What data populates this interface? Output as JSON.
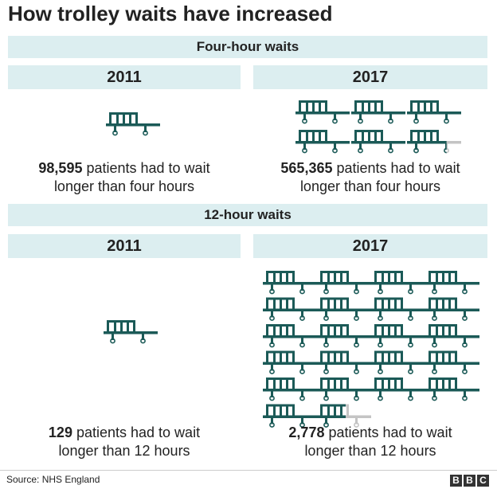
{
  "title": "How trolley waits have increased",
  "icon_color": "#1b5a57",
  "partial_color": "#c4c4c4",
  "sections": [
    {
      "heading": "Four-hour waits",
      "panels": [
        {
          "year": "2011",
          "value_text": "98,595",
          "caption_rest": " patients had to wait",
          "caption_line2": "longer than four hours",
          "trolleys": 1,
          "partial_fraction": 0
        },
        {
          "year": "2017",
          "value_text": "565,365",
          "caption_rest": " patients had to wait",
          "caption_line2": "longer than four hours",
          "trolleys": 5.73,
          "partial_fraction": 0.73
        }
      ]
    },
    {
      "heading": "12-hour waits",
      "panels": [
        {
          "year": "2011",
          "value_text": "129",
          "caption_rest": " patients had to wait",
          "caption_line2": "longer than 12 hours",
          "trolleys": 1,
          "partial_fraction": 0
        },
        {
          "year": "2017",
          "value_text": "2,778",
          "caption_rest": " patients had to wait",
          "caption_line2": "longer than 12 hours",
          "trolleys": 21.53,
          "partial_fraction": 0.53
        }
      ]
    }
  ],
  "chart_data": {
    "type": "pictogram",
    "title": "How trolley waits have increased",
    "categories": [
      "2011",
      "2017"
    ],
    "series": [
      {
        "name": "Four-hour waits",
        "values": [
          98595,
          565365
        ]
      },
      {
        "name": "12-hour waits",
        "values": [
          129,
          2778
        ]
      }
    ]
  },
  "source": "Source: NHS England",
  "logo": [
    "B",
    "B",
    "C"
  ]
}
